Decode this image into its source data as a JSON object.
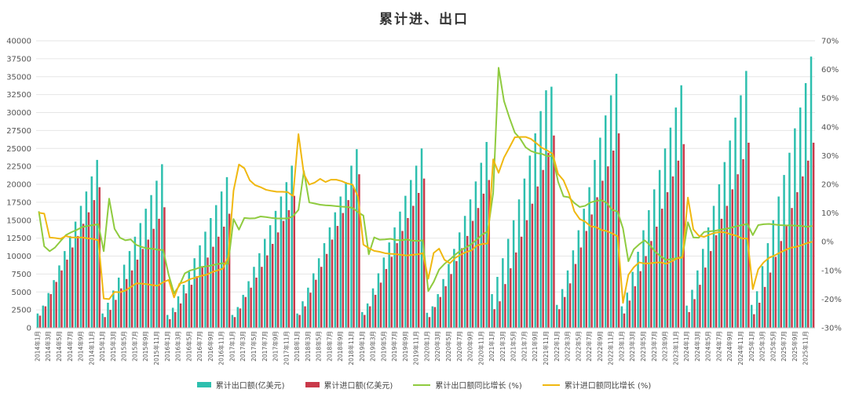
{
  "chart_data": {
    "type": "bar",
    "title": "累计进、出口",
    "colors": {
      "export_bar": "#2dbfae",
      "import_bar": "#c9394a",
      "export_line": "#8fcb3f",
      "import_line": "#f0b810",
      "grid": "#e6e6e6"
    },
    "y_left": {
      "lim": [
        0,
        40000
      ],
      "ticks": [
        "0",
        "2500",
        "5000",
        "7500",
        "10000",
        "12500",
        "15000",
        "17500",
        "20000",
        "22500",
        "25000",
        "27500",
        "30000",
        "32500",
        "35000",
        "37500",
        "40000"
      ]
    },
    "y_right": {
      "lim": [
        -30,
        70
      ],
      "ticks": [
        "-30%",
        "-20%",
        "-10%",
        "0%",
        "10%",
        "20%",
        "30%",
        "40%",
        "50%",
        "60%",
        "70%"
      ]
    },
    "x_tick_labels": [
      "2014年1月",
      "2014年3月",
      "2014年5月",
      "2014年7月",
      "2014年9月",
      "2014年11月",
      "2015年1月",
      "2015年3月",
      "2015年5月",
      "2015年7月",
      "2015年9月",
      "2015年11月",
      "2016年1月",
      "2016年3月",
      "2016年5月",
      "2016年7月",
      "2016年9月",
      "2016年11月",
      "2017年1月",
      "2017年3月",
      "2017年5月",
      "2017年7月",
      "2017年9月",
      "2017年11月",
      "2018年1月",
      "2018年3月",
      "2018年5月",
      "2018年7月",
      "2018年9月",
      "2018年11月",
      "2019年1月",
      "2019年3月",
      "2019年5月",
      "2019年7月",
      "2019年9月",
      "2019年11月",
      "2020年1月",
      "2020年3月",
      "2020年5月",
      "2020年7月",
      "2020年9月",
      "2020年11月",
      "2021年1月",
      "2021年3月",
      "2021年5月",
      "2021年7月",
      "2021年9月",
      "2021年11月",
      "2022年1月",
      "2022年3月",
      "2022年5月",
      "2022年7月",
      "2022年9月",
      "2022年11月",
      "2023年1月",
      "2023年3月",
      "2023年5月",
      "2023年7月",
      "2023年9月",
      "2023年11月",
      "2024年1月",
      "2024年3月",
      "2024年5月",
      "2024年7月",
      "2024年9月",
      "2024年11月",
      "2025年1月",
      "2025年3月",
      "2025年5月",
      "2025年7月",
      "2025年9月",
      "2025年11月"
    ],
    "years": [
      "2014",
      "2015",
      "2016",
      "2017",
      "2018",
      "2019",
      "2020",
      "2021",
      "2022",
      "2023",
      "2024",
      "2025"
    ],
    "series": [
      {
        "name": "累计出口额(亿美元)",
        "kind": "bar",
        "values": [
          [
            2000,
            3100,
            4850,
            6650,
            8700,
            10700,
            12800,
            14800,
            17000,
            19000,
            21100,
            23400
          ],
          [
            2000,
            3500,
            5200,
            7000,
            8800,
            10700,
            12700,
            14600,
            16600,
            18500,
            20500,
            22800
          ],
          [
            1800,
            2800,
            4400,
            6000,
            7800,
            9700,
            11500,
            13400,
            15300,
            17100,
            19000,
            21000
          ],
          [
            1800,
            2900,
            4600,
            6500,
            8500,
            10400,
            12400,
            14300,
            16300,
            18300,
            20300,
            22600
          ],
          [
            2000,
            3700,
            5600,
            7600,
            9700,
            11800,
            14000,
            16100,
            18300,
            20300,
            22600,
            24900
          ],
          [
            2200,
            3400,
            5500,
            7600,
            9800,
            11900,
            14000,
            16200,
            18400,
            20600,
            22600,
            25000
          ],
          [
            2100,
            3000,
            4700,
            6800,
            8900,
            11000,
            13300,
            15600,
            17900,
            20400,
            23000,
            25900
          ],
          [
            4700,
            7100,
            9700,
            12400,
            15000,
            17900,
            20800,
            24000,
            27100,
            30200,
            33100,
            33600
          ],
          [
            3200,
            5400,
            8000,
            10800,
            13600,
            16600,
            19600,
            23400,
            26500,
            29600,
            32400,
            35400
          ],
          [
            3000,
            4900,
            7800,
            10600,
            13600,
            16400,
            19300,
            22000,
            25000,
            27900,
            30700,
            33800
          ],
          [
            3100,
            5300,
            8000,
            11000,
            14000,
            17000,
            20000,
            23100,
            26100,
            29300,
            32400,
            35800
          ],
          [
            3200,
            5100,
            8600,
            11800,
            15000,
            18300,
            21300,
            24400,
            27800,
            30700,
            34100,
            37800
          ]
        ]
      },
      {
        "name": "累计进口额(亿美元)",
        "kind": "bar",
        "values": [
          [
            1700,
            3000,
            4700,
            6400,
            8000,
            9500,
            11200,
            12800,
            14500,
            16100,
            17800,
            19600
          ],
          [
            1500,
            2500,
            3900,
            5500,
            6800,
            8000,
            9500,
            11000,
            12300,
            13800,
            15200,
            16800
          ],
          [
            1200,
            2200,
            3400,
            4800,
            6000,
            7200,
            8500,
            9800,
            11300,
            12700,
            14100,
            15900
          ],
          [
            1500,
            2700,
            4300,
            5600,
            7000,
            8500,
            10100,
            11700,
            13300,
            14900,
            16400,
            18400
          ],
          [
            1800,
            3000,
            4900,
            6700,
            8500,
            10300,
            12300,
            14200,
            16000,
            17800,
            19600,
            21400
          ],
          [
            1800,
            3000,
            4600,
            6300,
            8200,
            9900,
            11800,
            13500,
            15300,
            17000,
            18800,
            20800
          ],
          [
            1500,
            2900,
            4300,
            5800,
            7500,
            9300,
            11100,
            12800,
            14900,
            16700,
            18700,
            20600
          ],
          [
            2600,
            3700,
            6100,
            8300,
            10500,
            12700,
            15000,
            17300,
            19700,
            22000,
            24400,
            26800
          ],
          [
            2600,
            4300,
            6200,
            8900,
            11200,
            13500,
            15800,
            18200,
            20500,
            22500,
            24700,
            27100
          ],
          [
            2000,
            3800,
            5800,
            7900,
            10000,
            12100,
            14100,
            16600,
            18900,
            21100,
            23300,
            25600
          ],
          [
            2200,
            4000,
            6000,
            8400,
            10700,
            12900,
            15200,
            17000,
            19300,
            21400,
            23500,
            25800
          ],
          [
            1900,
            3500,
            5700,
            7700,
            9900,
            12100,
            14300,
            16700,
            18900,
            21100,
            23300,
            25800
          ]
        ]
      },
      {
        "name": "累计出口额同比增长 (%)",
        "kind": "line",
        "values": [
          [
            10.6,
            -1.6,
            -3.3,
            -2.0,
            0.2,
            2.3,
            3.3,
            4.1,
            5.1,
            5.5,
            5.8,
            6.1
          ],
          [
            -3.3,
            15.0,
            4.5,
            1.4,
            0.5,
            0.8,
            -1.1,
            -1.8,
            -2.3,
            -2.4,
            -2.8,
            -2.9
          ],
          [
            -11.5,
            -18.0,
            -15.2,
            -11.0,
            -10.0,
            -9.5,
            -8.8,
            -8.6,
            -8.2,
            -7.8,
            -7.5,
            -7.7
          ],
          [
            7.9,
            4.2,
            8.3,
            8.1,
            8.2,
            8.8,
            8.6,
            8.3,
            8.1,
            8.1,
            8.1,
            8.9
          ],
          [
            11.1,
            24.6,
            13.7,
            13.3,
            12.9,
            12.7,
            12.6,
            12.4,
            12.2,
            12.1,
            11.8,
            10.3
          ],
          [
            9.1,
            -4.4,
            1.5,
            0.7,
            0.8,
            1.0,
            0.6,
            0.5,
            0.8,
            0.4,
            0.3,
            0.5
          ],
          [
            -17.2,
            -14.0,
            -9.7,
            -7.7,
            -6.2,
            -4.5,
            -3.0,
            -2.0,
            -0.8,
            0.8,
            2.5,
            3.6
          ],
          [
            17.0,
            60.6,
            49.0,
            43.2,
            38.0,
            35.9,
            32.9,
            31.6,
            30.9,
            30.6,
            29.8,
            29.9
          ],
          [
            20.9,
            15.8,
            15.5,
            13.5,
            12.1,
            12.5,
            13.7,
            14.2,
            14.5,
            13.5,
            11.1,
            10.5
          ],
          [
            4.6,
            -6.8,
            -2.6,
            -0.9,
            0.5,
            -1.2,
            -3.6,
            -5.1,
            -6.4,
            -6.0,
            -5.7,
            -5.2
          ],
          [
            6.8,
            1.5,
            1.4,
            3.4,
            3.6,
            3.8,
            4.2,
            4.5,
            4.9,
            5.4,
            5.8,
            6.2
          ],
          [
            2.3,
            5.8,
            6.1,
            6.2,
            6.0,
            5.8,
            5.7,
            5.7,
            5.6,
            5.5,
            5.2,
            5.5
          ]
        ]
      },
      {
        "name": "累计进口额同比增长 (%)",
        "kind": "line",
        "values": [
          [
            10.1,
            9.8,
            1.5,
            1.3,
            1.0,
            2.0,
            1.5,
            1.5,
            1.5,
            1.2,
            1.0,
            0.5
          ],
          [
            -19.8,
            -20.0,
            -17.5,
            -17.6,
            -17.0,
            -15.8,
            -14.5,
            -14.6,
            -14.8,
            -15.1,
            -15.3,
            -14.1
          ],
          [
            -13.3,
            -19.4,
            -14.6,
            -14.0,
            -13.0,
            -12.5,
            -11.9,
            -11.5,
            -10.6,
            -10.0,
            -9.4,
            -5.5
          ],
          [
            17.8,
            26.9,
            25.6,
            21.4,
            19.7,
            19.0,
            18.1,
            17.7,
            17.4,
            17.4,
            17.3,
            15.9
          ],
          [
            37.5,
            23.6,
            19.9,
            20.6,
            21.9,
            20.8,
            21.6,
            21.6,
            21.1,
            20.3,
            19.9,
            15.8
          ],
          [
            -1.0,
            -2.2,
            -3.2,
            -3.5,
            -4.0,
            -4.2,
            -4.3,
            -4.6,
            -4.8,
            -4.6,
            -4.4,
            -4.0
          ],
          [
            -12.9,
            -3.9,
            -2.4,
            -6.3,
            -7.5,
            -5.6,
            -4.5,
            -3.6,
            -3.0,
            -1.3,
            -0.8,
            -0.6
          ],
          [
            28.7,
            24.0,
            29.3,
            32.8,
            36.4,
            36.5,
            36.5,
            35.8,
            34.3,
            32.7,
            31.8,
            30.6
          ],
          [
            23.6,
            21.4,
            16.9,
            10.6,
            7.9,
            7.0,
            5.4,
            5.1,
            4.1,
            3.7,
            2.9,
            1.9
          ],
          [
            -21.3,
            -11.5,
            -8.9,
            -7.2,
            -7.6,
            -7.5,
            -7.3,
            -7.2,
            -7.7,
            -6.8,
            -5.8,
            -5.5
          ],
          [
            15.4,
            4.3,
            2.1,
            1.7,
            2.5,
            3.1,
            3.4,
            3.2,
            2.5,
            2.1,
            1.1,
            1.1
          ],
          [
            -16.5,
            -9.6,
            -7.2,
            -5.6,
            -4.8,
            -3.8,
            -2.9,
            -2.1,
            -1.8,
            -1.2,
            -0.5,
            0.0
          ]
        ]
      }
    ],
    "legend": {
      "position": "bottom"
    },
    "grid": true
  }
}
